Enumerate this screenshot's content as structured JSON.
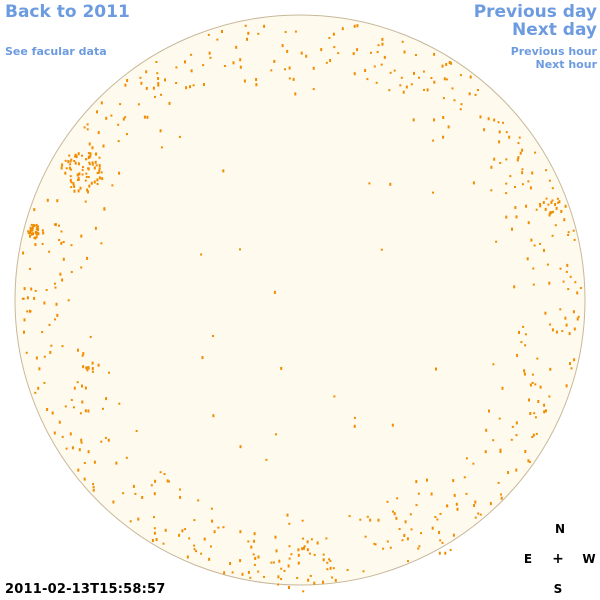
{
  "nav": {
    "back_label": "Back to 2011",
    "facular_label": "See facular data",
    "prev_day_label": "Previous day",
    "next_day_label": "Next day",
    "prev_hour_label": "Previous hour",
    "next_hour_label": "Next hour"
  },
  "timestamp": "2011-02-13T15:58:57",
  "compass": {
    "north": "N",
    "south": "S",
    "east": "E",
    "west": "W",
    "center": "+"
  },
  "colors": {
    "link": "#6d9be0",
    "disk_fill": "#fffaee",
    "disk_border": "#c8b89a",
    "feature": "#f08c00"
  }
}
